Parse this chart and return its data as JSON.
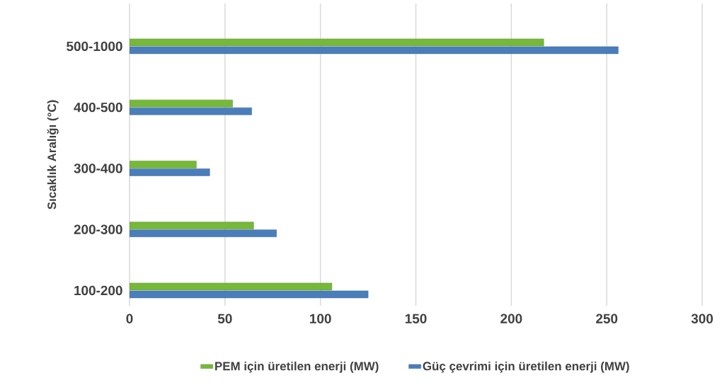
{
  "chart_data": {
    "type": "bar",
    "orientation": "horizontal",
    "ylabel": "Sıcaklık Aralığı (°C)",
    "categories": [
      "500-1000",
      "400-500",
      "300-400",
      "200-300",
      "100-200"
    ],
    "series": [
      {
        "name": "PEM için üretilen enerji (MW)",
        "color": "#76b83a",
        "values": [
          217,
          54,
          35,
          65,
          106
        ]
      },
      {
        "name": "Güç çevrimi için üretilen enerji (MW)",
        "color": "#4a7ebb",
        "values": [
          256,
          64,
          42,
          77,
          125
        ]
      }
    ],
    "xlim": [
      0,
      300
    ],
    "xticks": [
      0,
      50,
      100,
      150,
      200,
      250,
      300
    ],
    "grid": "x",
    "legend": "bottom"
  }
}
